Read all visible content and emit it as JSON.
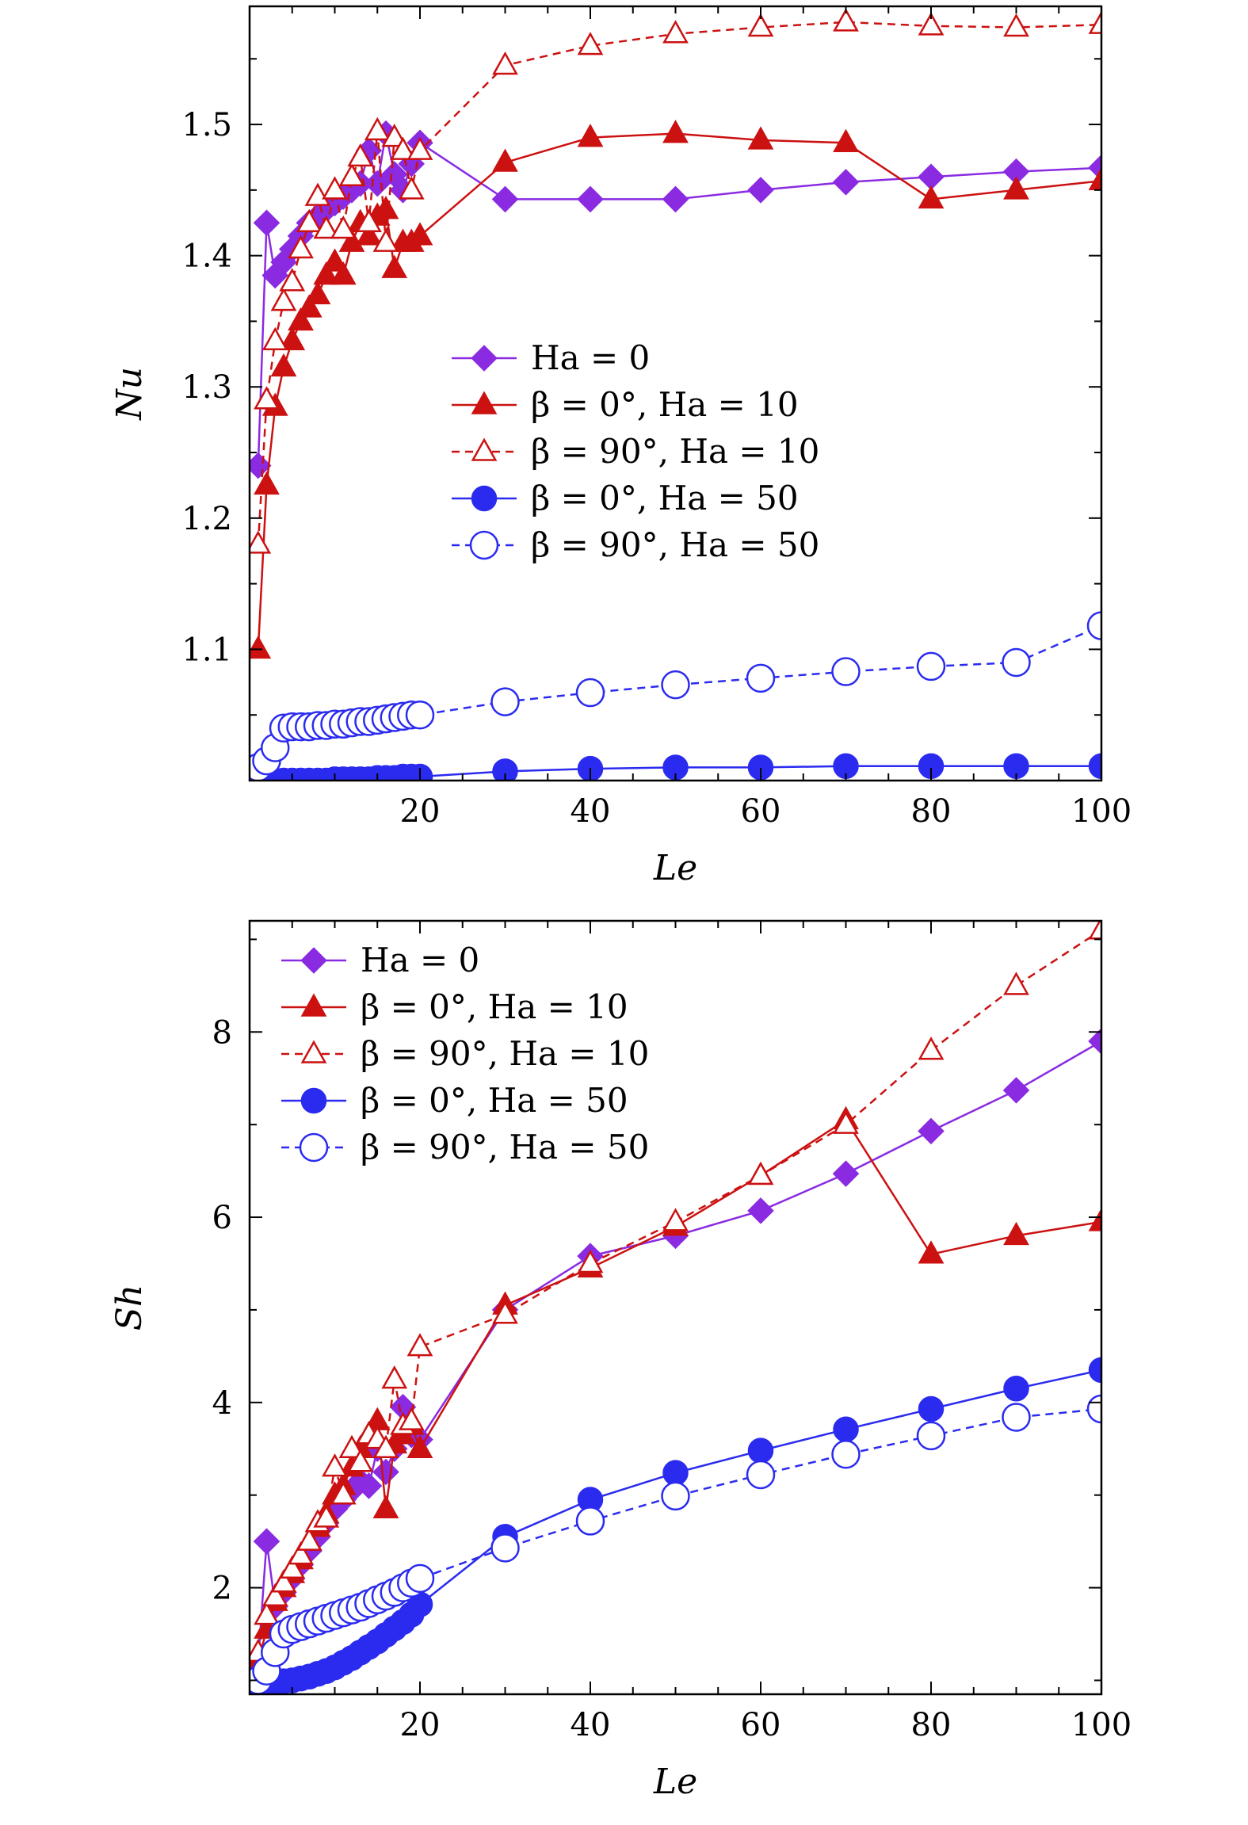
{
  "chart_data": [
    {
      "type": "line",
      "xlabel": "Le",
      "ylabel": "Nu",
      "xlim": [
        0,
        100
      ],
      "ylim": [
        1.0,
        1.59
      ],
      "xticks": [
        20,
        40,
        60,
        80,
        100
      ],
      "yticks": [
        1.1,
        1.2,
        1.3,
        1.4,
        1.5
      ],
      "x_tick_labels": [
        "20",
        "40",
        "60",
        "80",
        "100"
      ],
      "y_tick_labels": [
        "1.1",
        "1.2",
        "1.3",
        "1.4",
        "1.5"
      ],
      "legend_position": "center",
      "series": [
        {
          "name": "Ha = 0",
          "color": "#8a2be2",
          "marker": "diamond",
          "filled": true,
          "dashed": false,
          "x": [
            1,
            2,
            3,
            4,
            5,
            6,
            7,
            8,
            9,
            10,
            11,
            12,
            13,
            14,
            15,
            16,
            17,
            18,
            19,
            20,
            30,
            40,
            50,
            60,
            70,
            80,
            90,
            100
          ],
          "y": [
            1.24,
            1.425,
            1.385,
            1.395,
            1.405,
            1.415,
            1.425,
            1.43,
            1.435,
            1.44,
            1.445,
            1.45,
            1.455,
            1.48,
            1.455,
            1.493,
            1.462,
            1.45,
            1.47,
            1.486,
            1.443,
            1.443,
            1.443,
            1.45,
            1.456,
            1.46,
            1.464,
            1.467
          ]
        },
        {
          "name": "β = 0°, Ha = 10",
          "color": "#cc1111",
          "marker": "triangle",
          "filled": true,
          "dashed": false,
          "x": [
            1,
            2,
            3,
            4,
            5,
            6,
            7,
            8,
            9,
            10,
            11,
            12,
            13,
            14,
            15,
            16,
            17,
            18,
            19,
            20,
            30,
            40,
            50,
            60,
            70,
            80,
            90,
            100
          ],
          "y": [
            1.1,
            1.225,
            1.285,
            1.315,
            1.335,
            1.35,
            1.36,
            1.37,
            1.385,
            1.395,
            1.385,
            1.41,
            1.425,
            1.415,
            1.43,
            1.435,
            1.39,
            1.41,
            1.41,
            1.415,
            1.471,
            1.49,
            1.493,
            1.488,
            1.486,
            1.443,
            1.45,
            1.457
          ]
        },
        {
          "name": "β = 90°, Ha = 10",
          "color": "#cc1111",
          "marker": "triangle",
          "filled": false,
          "dashed": true,
          "x": [
            1,
            2,
            3,
            4,
            5,
            6,
            7,
            8,
            9,
            10,
            11,
            12,
            13,
            14,
            15,
            16,
            17,
            18,
            19,
            20,
            30,
            40,
            50,
            60,
            70,
            80,
            90,
            100
          ],
          "y": [
            1.18,
            1.29,
            1.335,
            1.365,
            1.38,
            1.405,
            1.425,
            1.445,
            1.42,
            1.45,
            1.42,
            1.46,
            1.475,
            1.425,
            1.495,
            1.41,
            1.49,
            1.48,
            1.45,
            1.48,
            1.545,
            1.56,
            1.569,
            1.574,
            1.578,
            1.575,
            1.574,
            1.576
          ]
        },
        {
          "name": "β = 0°, Ha = 50",
          "color": "#2b2bf0",
          "marker": "circle",
          "filled": true,
          "dashed": false,
          "x": [
            1,
            2,
            3,
            4,
            5,
            6,
            7,
            8,
            9,
            10,
            11,
            12,
            13,
            14,
            15,
            16,
            17,
            18,
            19,
            20,
            30,
            40,
            50,
            60,
            70,
            80,
            90,
            100
          ],
          "y": [
            1.0,
            1.0,
            1.0,
            1.0,
            1.0,
            1.0,
            1.0,
            1.0,
            1.0,
            1.001,
            1.001,
            1.001,
            1.001,
            1.001,
            1.002,
            1.002,
            1.002,
            1.003,
            1.003,
            1.003,
            1.007,
            1.009,
            1.01,
            1.01,
            1.011,
            1.011,
            1.011,
            1.011
          ]
        },
        {
          "name": "β = 90°, Ha = 50",
          "color": "#2b2bf0",
          "marker": "circle",
          "filled": false,
          "dashed": true,
          "x": [
            1,
            2,
            3,
            4,
            5,
            6,
            7,
            8,
            9,
            10,
            11,
            12,
            13,
            14,
            15,
            16,
            17,
            18,
            19,
            20,
            30,
            40,
            50,
            60,
            70,
            80,
            90,
            100
          ],
          "y": [
            1.01,
            1.015,
            1.025,
            1.04,
            1.041,
            1.041,
            1.041,
            1.042,
            1.042,
            1.043,
            1.043,
            1.044,
            1.045,
            1.045,
            1.046,
            1.047,
            1.048,
            1.049,
            1.05,
            1.05,
            1.06,
            1.067,
            1.073,
            1.078,
            1.083,
            1.087,
            1.09,
            1.118
          ]
        }
      ]
    },
    {
      "type": "line",
      "xlabel": "Le",
      "ylabel": "Sh",
      "xlim": [
        0,
        100
      ],
      "ylim": [
        0.85,
        9.2
      ],
      "xticks": [
        20,
        40,
        60,
        80,
        100
      ],
      "yticks": [
        2,
        4,
        6,
        8
      ],
      "x_tick_labels": [
        "20",
        "40",
        "60",
        "80",
        "100"
      ],
      "y_tick_labels": [
        "2",
        "4",
        "6",
        "8"
      ],
      "legend_position": "top-left",
      "series": [
        {
          "name": "Ha = 0",
          "color": "#8a2be2",
          "marker": "diamond",
          "filled": true,
          "dashed": false,
          "x": [
            1,
            2,
            3,
            4,
            5,
            6,
            7,
            8,
            9,
            10,
            11,
            12,
            13,
            14,
            15,
            16,
            17,
            18,
            19,
            20,
            30,
            40,
            50,
            60,
            70,
            80,
            90,
            100
          ],
          "y": [
            1.2,
            2.5,
            1.8,
            1.95,
            2.1,
            2.25,
            2.4,
            2.55,
            2.7,
            2.85,
            2.95,
            3.05,
            3.15,
            3.1,
            3.5,
            3.25,
            3.5,
            3.95,
            3.65,
            3.6,
            5.0,
            5.58,
            5.8,
            6.07,
            6.47,
            6.93,
            7.37,
            7.9
          ]
        },
        {
          "name": "β = 0°, Ha = 10",
          "color": "#cc1111",
          "marker": "triangle",
          "filled": true,
          "dashed": false,
          "x": [
            1,
            2,
            3,
            4,
            5,
            6,
            7,
            8,
            9,
            10,
            11,
            12,
            13,
            14,
            15,
            16,
            17,
            18,
            19,
            20,
            30,
            40,
            50,
            60,
            70,
            80,
            90,
            100
          ],
          "y": [
            1.2,
            1.55,
            1.85,
            2.0,
            2.15,
            2.3,
            2.5,
            2.65,
            2.8,
            3.0,
            3.1,
            3.3,
            3.5,
            3.65,
            3.8,
            2.85,
            3.55,
            3.65,
            3.75,
            3.5,
            5.05,
            5.45,
            5.9,
            6.45,
            7.05,
            5.6,
            5.8,
            5.95
          ]
        },
        {
          "name": "β = 90°, Ha = 10",
          "color": "#cc1111",
          "marker": "triangle",
          "filled": false,
          "dashed": true,
          "x": [
            1,
            2,
            3,
            4,
            5,
            6,
            7,
            8,
            9,
            10,
            11,
            12,
            13,
            14,
            15,
            16,
            17,
            18,
            19,
            20,
            30,
            40,
            50,
            60,
            70,
            80,
            90,
            100
          ],
          "y": [
            1.3,
            1.7,
            1.9,
            2.05,
            2.2,
            2.35,
            2.5,
            2.7,
            2.75,
            3.3,
            3.0,
            3.5,
            3.35,
            3.65,
            3.6,
            3.5,
            4.25,
            3.75,
            3.8,
            4.6,
            4.95,
            5.5,
            5.95,
            6.45,
            7.0,
            7.8,
            8.5,
            9.1
          ]
        },
        {
          "name": "β = 0°, Ha = 50",
          "color": "#2b2bf0",
          "marker": "circle",
          "filled": true,
          "dashed": false,
          "x": [
            1,
            2,
            3,
            4,
            5,
            6,
            7,
            8,
            9,
            10,
            11,
            12,
            13,
            14,
            15,
            16,
            17,
            18,
            19,
            20,
            30,
            40,
            50,
            60,
            70,
            80,
            90,
            100
          ],
          "y": [
            0.93,
            0.95,
            0.97,
            0.99,
            1.0,
            1.02,
            1.04,
            1.07,
            1.1,
            1.14,
            1.19,
            1.24,
            1.3,
            1.36,
            1.42,
            1.49,
            1.56,
            1.63,
            1.71,
            1.82,
            2.55,
            2.95,
            3.24,
            3.48,
            3.71,
            3.93,
            4.15,
            4.35
          ]
        },
        {
          "name": "β = 90°, Ha = 50",
          "color": "#2b2bf0",
          "marker": "circle",
          "filled": false,
          "dashed": true,
          "x": [
            1,
            2,
            3,
            4,
            5,
            6,
            7,
            8,
            9,
            10,
            11,
            12,
            13,
            14,
            15,
            16,
            17,
            18,
            19,
            20,
            30,
            40,
            50,
            60,
            70,
            80,
            90,
            100
          ],
          "y": [
            1.0,
            1.1,
            1.3,
            1.5,
            1.55,
            1.58,
            1.61,
            1.64,
            1.67,
            1.7,
            1.73,
            1.76,
            1.79,
            1.83,
            1.87,
            1.91,
            1.95,
            2.0,
            2.05,
            2.1,
            2.43,
            2.72,
            2.99,
            3.22,
            3.44,
            3.64,
            3.84,
            3.93
          ]
        }
      ]
    }
  ]
}
